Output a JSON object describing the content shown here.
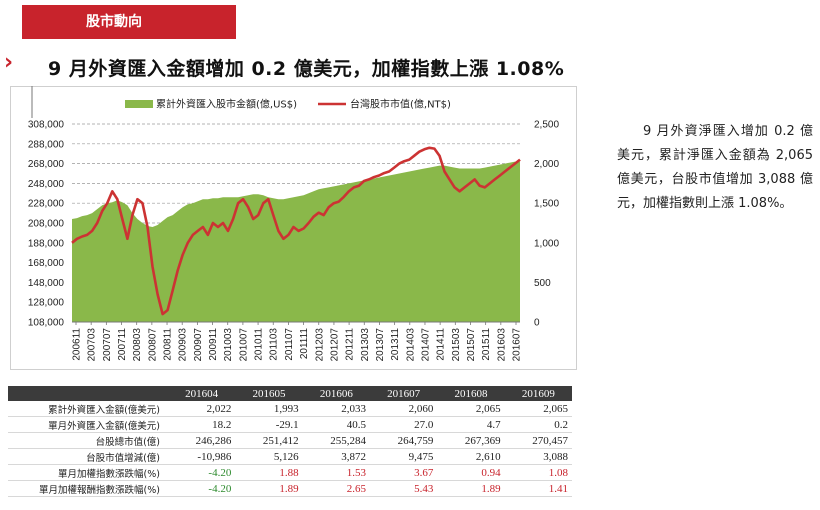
{
  "section": {
    "tag": "股市動向"
  },
  "headline": "9 月外資匯入金額增加 0.2 億美元，加權指數上漲 1.08%",
  "side_text": "9 月外資淨匯入增加 0.2 億美元，累計淨匯入金額為 2,065 億美元，台股市值增加 3,088 億元，加權指數則上漲 1.08%。",
  "chart_data": {
    "type": "area+line",
    "series": [
      {
        "name": "累計外資匯入股市金額(億,US$)",
        "axis": "left",
        "color": "#8ab84a",
        "values": [
          212,
          213,
          215,
          216,
          218,
          222,
          226,
          228,
          229,
          231,
          229,
          226,
          218,
          212,
          208,
          205,
          204,
          206,
          210,
          214,
          216,
          220,
          224,
          227,
          228,
          230,
          232,
          232,
          233,
          233,
          234,
          234,
          234,
          234,
          235,
          236,
          237,
          237,
          236,
          234,
          233,
          232,
          232,
          233,
          234,
          235,
          236,
          238,
          240,
          242,
          243,
          244,
          245,
          246,
          247,
          248,
          249,
          250,
          251,
          252,
          253,
          254,
          255,
          256,
          257,
          258,
          259,
          260,
          261,
          262,
          263,
          264,
          265,
          266,
          266,
          265,
          264,
          263,
          263,
          263,
          263,
          263,
          264,
          265,
          266,
          267,
          268,
          269,
          270,
          270
        ]
      },
      {
        "name": "台灣股市市值(億,NT$)",
        "axis": "right",
        "color": "#cc3333",
        "values": [
          1000,
          1050,
          1080,
          1100,
          1150,
          1250,
          1400,
          1500,
          1650,
          1550,
          1300,
          1050,
          1350,
          1550,
          1500,
          1200,
          700,
          350,
          100,
          150,
          400,
          650,
          850,
          1000,
          1100,
          1150,
          1200,
          1100,
          1250,
          1200,
          1250,
          1150,
          1300,
          1500,
          1550,
          1450,
          1300,
          1350,
          1500,
          1550,
          1350,
          1150,
          1050,
          1100,
          1200,
          1150,
          1180,
          1250,
          1330,
          1380,
          1350,
          1450,
          1500,
          1520,
          1580,
          1650,
          1700,
          1720,
          1780,
          1800,
          1830,
          1850,
          1880,
          1900,
          1950,
          2000,
          2030,
          2050,
          2100,
          2150,
          2180,
          2200,
          2190,
          2100,
          1900,
          1800,
          1700,
          1650,
          1700,
          1750,
          1800,
          1720,
          1700,
          1750,
          1800,
          1850,
          1900,
          1950,
          2000,
          2050
        ]
      }
    ],
    "x_tick_labels": [
      "200611",
      "200703",
      "200707",
      "200711",
      "200803",
      "200807",
      "200811",
      "200903",
      "200907",
      "200911",
      "201003",
      "201007",
      "201011",
      "201103",
      "201107",
      "201111",
      "201203",
      "201207",
      "201211",
      "201303",
      "201307",
      "201311",
      "201403",
      "201407",
      "201411",
      "201503",
      "201507",
      "201511",
      "201603",
      "201607"
    ],
    "left_axis": {
      "ticks": [
        "308,000",
        "288,000",
        "268,000",
        "248,000",
        "228,000",
        "208,000",
        "188,000",
        "168,000",
        "148,000",
        "128,000",
        "108,000"
      ],
      "ylim": [
        108,
        308
      ]
    },
    "right_axis": {
      "ticks": [
        "2,500",
        "2,000",
        "1,500",
        "1,000",
        "500",
        "0"
      ],
      "ylim": [
        0,
        2500
      ]
    },
    "legend_position": "top-center",
    "grid": "horizontal-dashed"
  },
  "table": {
    "columns": [
      "201604",
      "201605",
      "201606",
      "201607",
      "201608",
      "201609"
    ],
    "rows": [
      {
        "label": "累計外資匯入金額(億美元)",
        "values": [
          "2,022",
          "1,993",
          "2,033",
          "2,060",
          "2,065",
          "2,065"
        ],
        "color": "default"
      },
      {
        "label": "單月外資匯入金額(億美元)",
        "values": [
          "18.2",
          "-29.1",
          "40.5",
          "27.0",
          "4.7",
          "0.2"
        ],
        "color": "default"
      },
      {
        "label": "台股總市值(億)",
        "values": [
          "246,286",
          "251,412",
          "255,284",
          "264,759",
          "267,369",
          "270,457"
        ],
        "color": "default"
      },
      {
        "label": "台股市值增減(億)",
        "values": [
          "-10,986",
          "5,126",
          "3,872",
          "9,475",
          "2,610",
          "3,088"
        ],
        "color": "default"
      },
      {
        "label": "單月加權指數漲跌幅(%)",
        "values": [
          "-4.20",
          "1.88",
          "1.53",
          "3.67",
          "0.94",
          "1.08"
        ],
        "color": "signed"
      },
      {
        "label": "單月加權報酬指數漲跌幅(%)",
        "values": [
          "-4.20",
          "1.89",
          "2.65",
          "5.43",
          "1.89",
          "1.41"
        ],
        "color": "signed"
      }
    ]
  }
}
